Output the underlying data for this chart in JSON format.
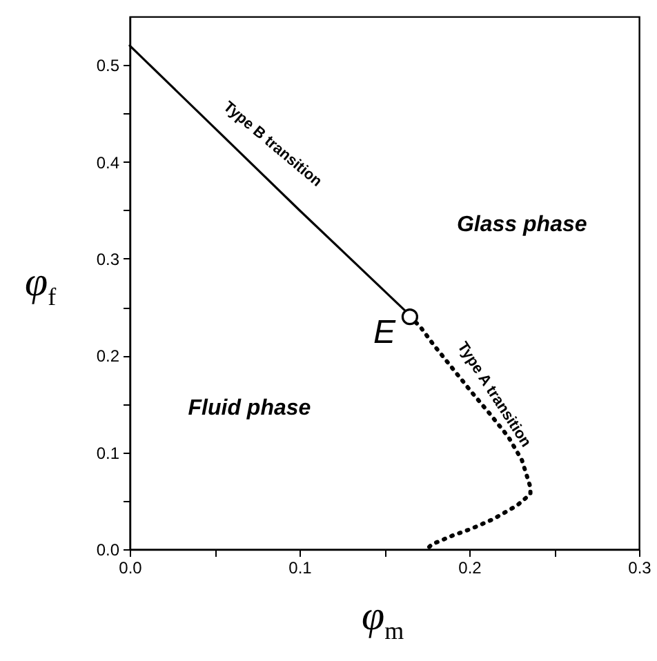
{
  "chart_data": {
    "type": "line",
    "xlabel": "φ$_{m}$",
    "ylabel": "φ$_{f}$",
    "xlim": [
      0,
      0.3
    ],
    "ylim": [
      0,
      0.55
    ],
    "xticks": [
      {
        "value": 0,
        "label": "0.0"
      },
      {
        "value": 0.05,
        "label": null
      },
      0.1,
      {
        "value": 0.15,
        "label": null
      },
      0.2,
      {
        "value": 0.25,
        "label": null
      },
      0.3
    ],
    "yticks": [
      {
        "value": 0,
        "label": "0.0"
      },
      {
        "value": 0.05,
        "label": null
      },
      0.1,
      {
        "value": 0.15,
        "label": null
      },
      0.2,
      {
        "value": 0.25,
        "label": null
      },
      0.3,
      {
        "value": 0.35,
        "label": null
      },
      0.4,
      {
        "value": 0.45,
        "label": null
      },
      0.5
    ],
    "series": [
      {
        "line_style": "solid",
        "color": "#000000",
        "x": [
          0,
          0.05,
          0.1,
          0.13,
          0.163
        ],
        "values": [
          0.52,
          0.435,
          0.35,
          0.3,
          0.245
        ]
      },
      {
        "line_style": "dotted",
        "color": "#000000",
        "x": [
          0.165,
          0.171,
          0.179,
          0.19,
          0.201,
          0.212,
          0.223,
          0.231,
          0.236,
          0.236,
          0.228,
          0.214,
          0.201,
          0.19,
          0.178,
          0.175
        ],
        "values": [
          0.24,
          0.23,
          0.211,
          0.187,
          0.163,
          0.14,
          0.116,
          0.092,
          0.064,
          0.057,
          0.045,
          0.031,
          0.021,
          0.014,
          0.005,
          0
        ]
      },
      {
        "type": "scatter",
        "marker": "circle",
        "color": "#000000",
        "x": [
          0.165
        ],
        "values": [
          0.24
        ]
      }
    ],
    "annotations": [
      "Type B transition",
      "Glass phase",
      "E",
      "Type A transition",
      "Fluid phase"
    ]
  }
}
